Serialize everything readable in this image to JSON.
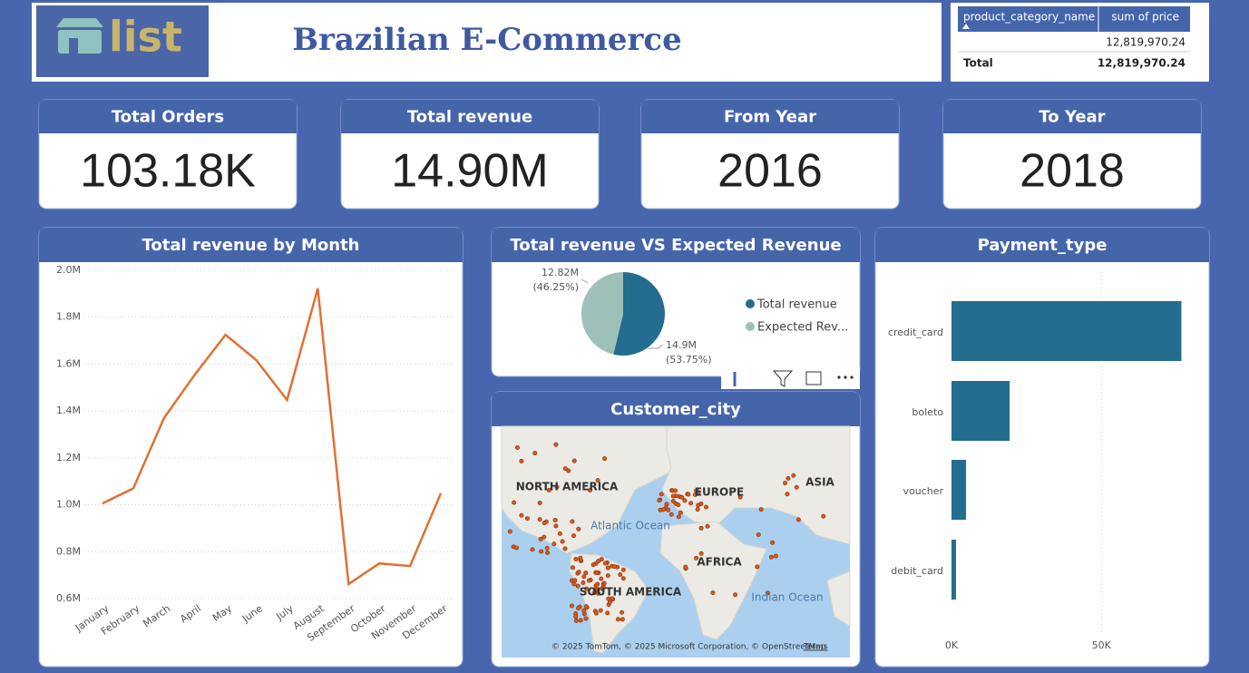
{
  "header": {
    "logo": "list",
    "title": "Brazilian E-Commerce"
  },
  "table": {
    "columns": [
      "product_category_name",
      "sum of price"
    ],
    "rows": [
      [
        "",
        "12,819,970.24"
      ]
    ],
    "total": [
      "Total",
      "12,819,970.24"
    ]
  },
  "cards": [
    {
      "title": "Total Orders",
      "value": "103.18K"
    },
    {
      "title": "Total revenue",
      "value": "14.90M"
    },
    {
      "title": "From Year",
      "value": "2016"
    },
    {
      "title": "To Year",
      "value": "2018"
    }
  ],
  "map": {
    "title": "Customer_city",
    "labels": [
      "NORTH AMERICA",
      "EUROPE",
      "ASIA",
      "Atlantic Ocean",
      "AFRICA",
      "SOUTH AMERICA",
      "Indian Ocean"
    ],
    "attribution": "© 2025 TomTom, © 2025 Microsoft Corporation, © OpenStreetMap",
    "terms": "Terms"
  },
  "chart_data": [
    {
      "type": "line",
      "title": "Total revenue by Month",
      "color": "#e07034",
      "categories": [
        "January",
        "February",
        "March",
        "April",
        "May",
        "June",
        "July",
        "August",
        "September",
        "October",
        "November",
        "December"
      ],
      "values": [
        1006000,
        1070000,
        1370000,
        1555000,
        1725000,
        1617000,
        1447000,
        1923000,
        662000,
        750000,
        739000,
        1049000
      ],
      "ylim": [
        600000,
        2000000
      ],
      "yticks": [
        {
          "value": 600000,
          "label": "0.6M"
        },
        {
          "value": 800000,
          "label": "0.8M"
        },
        {
          "value": 1000000,
          "label": "1.0M"
        },
        {
          "value": 1200000,
          "label": "1.2M"
        },
        {
          "value": 1400000,
          "label": "1.4M"
        },
        {
          "value": 1600000,
          "label": "1.6M"
        },
        {
          "value": 1800000,
          "label": "1.8M"
        },
        {
          "value": 2000000,
          "label": "2.0M"
        }
      ],
      "grid": true
    },
    {
      "type": "pie",
      "title": "Total revenue VS Expected Revenue",
      "categories": [
        "Total revenue",
        "Expected Rev..."
      ],
      "values": [
        14900000,
        12820000
      ],
      "value_labels": [
        "14.9M",
        "12.82M"
      ],
      "percent_labels": [
        "(53.75%)",
        "(46.25%)"
      ],
      "colors": [
        "#236d8e",
        "#9fc0b8"
      ],
      "legend": "right"
    },
    {
      "type": "barh",
      "title": "Payment_type",
      "color": "#236d8e",
      "categories": [
        "credit_card",
        "boleto",
        "voucher",
        "debit_card"
      ],
      "values": [
        76700,
        19400,
        4850,
        1500
      ],
      "xlim": [
        0,
        82000
      ],
      "xticks": [
        {
          "value": 0,
          "label": "0K"
        },
        {
          "value": 50000,
          "label": "50K"
        }
      ],
      "grid": true
    }
  ]
}
